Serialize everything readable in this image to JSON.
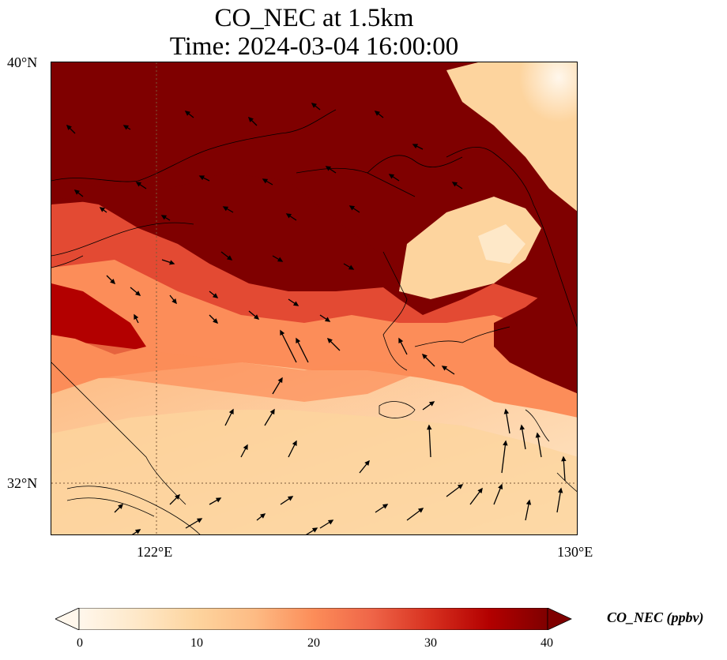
{
  "title": {
    "line1": "CO_NEC at 1.5km",
    "line2": "Time: 2024-03-04 16:00:00"
  },
  "map": {
    "lat_labels": [
      "40°N",
      "32°N"
    ],
    "lon_labels": [
      "122°E",
      "130°E"
    ],
    "extent": {
      "lon_min": 120,
      "lon_max": 130,
      "lat_min": 31,
      "lat_max": 40
    },
    "gridlines": {
      "lons": [
        122
      ],
      "lats": [
        32
      ],
      "style": "dotted"
    },
    "wind_vectors": true,
    "coastlines": true
  },
  "colorbar": {
    "label": "CO_NEC (ppbv)",
    "ticks": [
      "0",
      "10",
      "20",
      "30",
      "40"
    ],
    "range": [
      0,
      40
    ],
    "extend": "both",
    "colormap": "OrRd",
    "colors": [
      "#fff7ec",
      "#fee8c8",
      "#fdd49e",
      "#fdbb84",
      "#fc8d59",
      "#ef6548",
      "#d7301f",
      "#b30000",
      "#7f0000"
    ]
  }
}
